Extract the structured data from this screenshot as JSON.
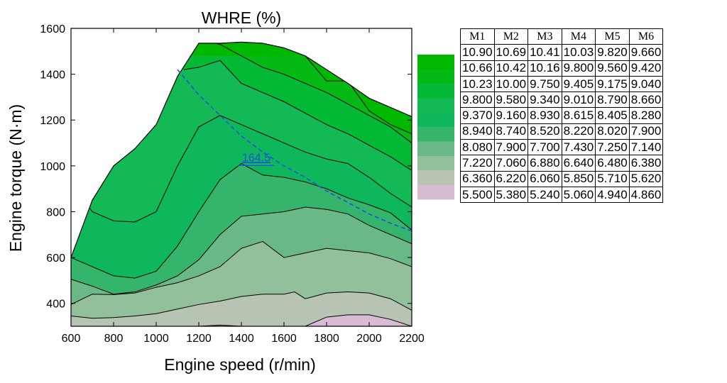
{
  "chart_data": {
    "type": "contour",
    "title": "WHRE (%)",
    "xlabel": "Engine speed (r/min)",
    "ylabel": "Engine torque (N·m)",
    "xlim": [
      600,
      2200
    ],
    "ylim": [
      300,
      1600
    ],
    "xticks": [
      600,
      800,
      1000,
      1200,
      1400,
      1600,
      1800,
      2000,
      2200
    ],
    "yticks": [
      400,
      600,
      800,
      1000,
      1200,
      1400,
      1600
    ],
    "boundary": {
      "x": [
        600,
        700,
        800,
        900,
        1000,
        1100,
        1200,
        1300,
        1400,
        1500,
        1600,
        1700,
        1800,
        1900,
        2000,
        2100,
        2200
      ],
      "y": [
        600,
        850,
        1000,
        1075,
        1180,
        1390,
        1535,
        1535,
        1540,
        1535,
        1515,
        1480,
        1420,
        1360,
        1295,
        1255,
        1215
      ]
    },
    "contour_lines": [
      {
        "x": [
          700,
          800,
          900,
          1000,
          1100,
          1200,
          1300,
          1400,
          1500,
          1600,
          1700,
          1800,
          1900,
          2000,
          2100,
          2200
        ],
        "y": [
          300,
          300,
          300,
          300,
          300,
          300,
          305,
          300,
          300,
          300,
          300,
          340,
          350,
          350,
          330,
          300
        ]
      },
      {
        "x": [
          600,
          700,
          800,
          900,
          1000,
          1100,
          1200,
          1300,
          1400,
          1500,
          1600,
          1650,
          1700,
          1800,
          1900,
          2000,
          2100,
          2200
        ],
        "y": [
          345,
          335,
          338,
          345,
          355,
          375,
          395,
          410,
          430,
          440,
          440,
          450,
          420,
          445,
          450,
          445,
          420,
          370
        ]
      },
      {
        "x": [
          600,
          700,
          800,
          900,
          1000,
          1100,
          1200,
          1300,
          1400,
          1500,
          1600,
          1700,
          1800,
          1900,
          2000,
          2100,
          2200
        ],
        "y": [
          395,
          440,
          438,
          445,
          470,
          490,
          520,
          560,
          640,
          670,
          600,
          620,
          640,
          630,
          620,
          595,
          560
        ]
      },
      {
        "x": [
          600,
          700,
          800,
          900,
          1000,
          1100,
          1200,
          1300,
          1400,
          1500,
          1600,
          1700,
          1800,
          1900,
          2000,
          2100,
          2200
        ],
        "y": [
          505,
          475,
          440,
          450,
          480,
          520,
          590,
          700,
          780,
          790,
          800,
          820,
          810,
          790,
          740,
          700,
          660
        ]
      },
      {
        "x": [
          600,
          700,
          800,
          900,
          1000,
          1100,
          1200,
          1300,
          1400,
          1500,
          1600,
          1700,
          1800,
          1900,
          2000,
          2100,
          2200
        ],
        "y": [
          600,
          560,
          520,
          510,
          540,
          650,
          800,
          940,
          1010,
          960,
          950,
          930,
          900,
          860,
          830,
          795,
          720
        ]
      },
      {
        "x": [
          660,
          700,
          800,
          900,
          1000,
          1100,
          1200,
          1300,
          1400,
          1500,
          1600,
          1700,
          1800,
          1900,
          2000,
          2100,
          2200
        ],
        "y": [
          850,
          800,
          760,
          755,
          800,
          1000,
          1170,
          1220,
          1180,
          1140,
          1100,
          1060,
          1030,
          1010,
          950,
          880,
          820
        ]
      },
      {
        "x": [
          1130,
          1200,
          1300,
          1400,
          1500,
          1600,
          1700,
          1800,
          1900,
          2000,
          2100,
          2200
        ],
        "y": [
          1420,
          1430,
          1460,
          1360,
          1320,
          1280,
          1230,
          1180,
          1140,
          1090,
          1040,
          980
        ]
      },
      {
        "x": [
          1280,
          1300,
          1400,
          1500,
          1600,
          1700,
          1800,
          1900,
          2000,
          2100,
          2200
        ],
        "y": [
          1535,
          1530,
          1480,
          1430,
          1400,
          1360,
          1320,
          1270,
          1220,
          1170,
          1100
        ]
      },
      {
        "x": [
          1700,
          1800,
          1900,
          2000,
          2100,
          2200
        ],
        "y": [
          1480,
          1370,
          1370,
          1240,
          1180,
          1140
        ]
      }
    ],
    "band_colors": [
      "#d8bcd4",
      "#b8c4b3",
      "#92c09a",
      "#6ab885",
      "#35b56c",
      "#0fb75c",
      "#12b954",
      "#04b935",
      "#05b914",
      "#00b800"
    ],
    "dashed_line": {
      "x": [
        1100,
        1200,
        1300,
        1400,
        1500,
        1600,
        1700,
        1800,
        1900,
        2000,
        2100,
        2200
      ],
      "y": [
        1420,
        1310,
        1220,
        1130,
        1060,
        1000,
        950,
        890,
        840,
        790,
        750,
        715
      ],
      "color": "#2050e0",
      "label": "164.5",
      "label_x": 1470,
      "label_y": 1020
    }
  },
  "legend_table": {
    "headers": [
      "M1",
      "M2",
      "M3",
      "M4",
      "M5",
      "M6"
    ],
    "rows": [
      [
        "10.90",
        "10.69",
        "10.41",
        "10.03",
        "9.820",
        "9.660"
      ],
      [
        "10.66",
        "10.42",
        "10.16",
        "9.800",
        "9.560",
        "9.420"
      ],
      [
        "10.23",
        "10.00",
        "9.750",
        "9.405",
        "9.175",
        "9.040"
      ],
      [
        "9.800",
        "9.580",
        "9.340",
        "9.010",
        "8.790",
        "8.660"
      ],
      [
        "9.370",
        "9.160",
        "8.930",
        "8.615",
        "8.405",
        "8.280"
      ],
      [
        "8.940",
        "8.740",
        "8.520",
        "8.220",
        "8.020",
        "7.900"
      ],
      [
        "8.080",
        "7.900",
        "7.700",
        "7.430",
        "7.250",
        "7.140"
      ],
      [
        "7.220",
        "7.060",
        "6.880",
        "6.640",
        "6.480",
        "6.380"
      ],
      [
        "6.360",
        "6.220",
        "6.060",
        "5.850",
        "5.710",
        "5.620"
      ],
      [
        "5.500",
        "5.380",
        "5.240",
        "5.060",
        "4.940",
        "4.860"
      ]
    ],
    "swatch_colors": [
      "#00b800",
      "#05b914",
      "#04b935",
      "#12b954",
      "#0fb75c",
      "#35b56c",
      "#6ab885",
      "#92c09a",
      "#b8c4b3",
      "#d8bcd4"
    ]
  }
}
